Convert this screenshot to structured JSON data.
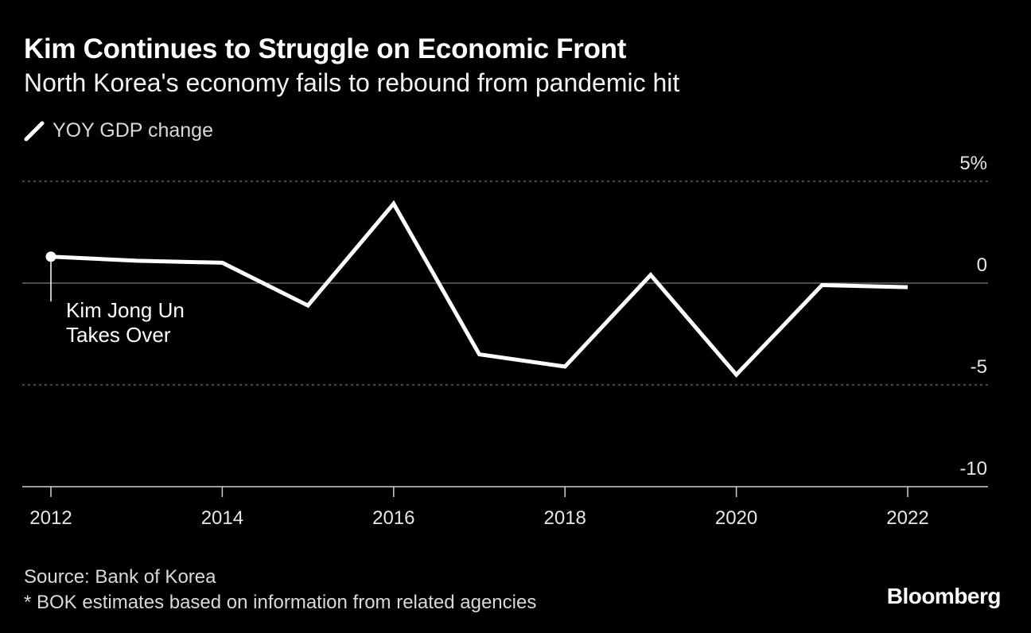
{
  "title": "Kim Continues to Struggle on Economic Front",
  "subtitle": "North Korea's economy fails to rebound from pandemic hit",
  "legend": {
    "label": "YOY GDP change",
    "icon": "line-swatch-icon"
  },
  "footer": {
    "source": "Source: Bank of Korea",
    "note": "* BOK estimates based on information from related agencies"
  },
  "brand": "Bloomberg",
  "colors": {
    "background": "#000000",
    "line": "#ffffff",
    "grid": "#8c8c8c",
    "text": "#e6e6e6"
  },
  "chart_data": {
    "type": "line",
    "title": "Kim Continues to Struggle on Economic Front",
    "subtitle": "North Korea's economy fails to rebound from pandemic hit",
    "xlabel": "",
    "ylabel": "",
    "x": [
      2012,
      2013,
      2014,
      2015,
      2016,
      2017,
      2018,
      2019,
      2020,
      2021,
      2022
    ],
    "series": [
      {
        "name": "YOY GDP change",
        "values": [
          1.3,
          1.1,
          1.0,
          -1.1,
          3.9,
          -3.5,
          -4.1,
          0.4,
          -4.5,
          -0.1,
          -0.2
        ]
      }
    ],
    "xlim": [
      2012,
      2022.5
    ],
    "ylim": [
      -10,
      5
    ],
    "x_ticks": [
      2012,
      2014,
      2016,
      2018,
      2020,
      2022
    ],
    "y_ticks": [
      {
        "value": 5,
        "label": "5%"
      },
      {
        "value": 0,
        "label": "0"
      },
      {
        "value": -5,
        "label": "-5"
      },
      {
        "value": -10,
        "label": "-10"
      }
    ],
    "annotation": {
      "year": 2012,
      "lines": [
        "Kim Jong Un",
        "Takes Over"
      ]
    },
    "legend_position": "top-left"
  }
}
